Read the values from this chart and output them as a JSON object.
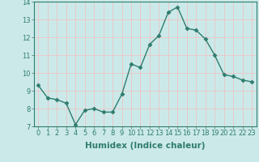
{
  "x": [
    0,
    1,
    2,
    3,
    4,
    5,
    6,
    7,
    8,
    9,
    10,
    11,
    12,
    13,
    14,
    15,
    16,
    17,
    18,
    19,
    20,
    21,
    22,
    23
  ],
  "y": [
    9.3,
    8.6,
    8.5,
    8.3,
    7.1,
    7.9,
    8.0,
    7.8,
    7.8,
    8.8,
    10.5,
    10.3,
    11.6,
    12.1,
    13.4,
    13.7,
    12.5,
    12.4,
    11.9,
    11.0,
    9.9,
    9.8,
    9.6,
    9.5
  ],
  "line_color": "#2e7d6e",
  "marker": "D",
  "marker_size": 2.5,
  "line_width": 1.0,
  "xlabel": "Humidex (Indice chaleur)",
  "xlim": [
    -0.5,
    23.5
  ],
  "ylim": [
    7,
    14
  ],
  "yticks": [
    7,
    8,
    9,
    10,
    11,
    12,
    13,
    14
  ],
  "xticks": [
    0,
    1,
    2,
    3,
    4,
    5,
    6,
    7,
    8,
    9,
    10,
    11,
    12,
    13,
    14,
    15,
    16,
    17,
    18,
    19,
    20,
    21,
    22,
    23
  ],
  "xtick_labels": [
    "0",
    "1",
    "2",
    "3",
    "4",
    "5",
    "6",
    "7",
    "8",
    "9",
    "10",
    "11",
    "12",
    "13",
    "14",
    "15",
    "16",
    "17",
    "18",
    "19",
    "20",
    "21",
    "22",
    "23"
  ],
  "bg_color": "#cce9e9",
  "grid_color": "#e8c8c8",
  "tick_fontsize": 6,
  "xlabel_fontsize": 7.5
}
